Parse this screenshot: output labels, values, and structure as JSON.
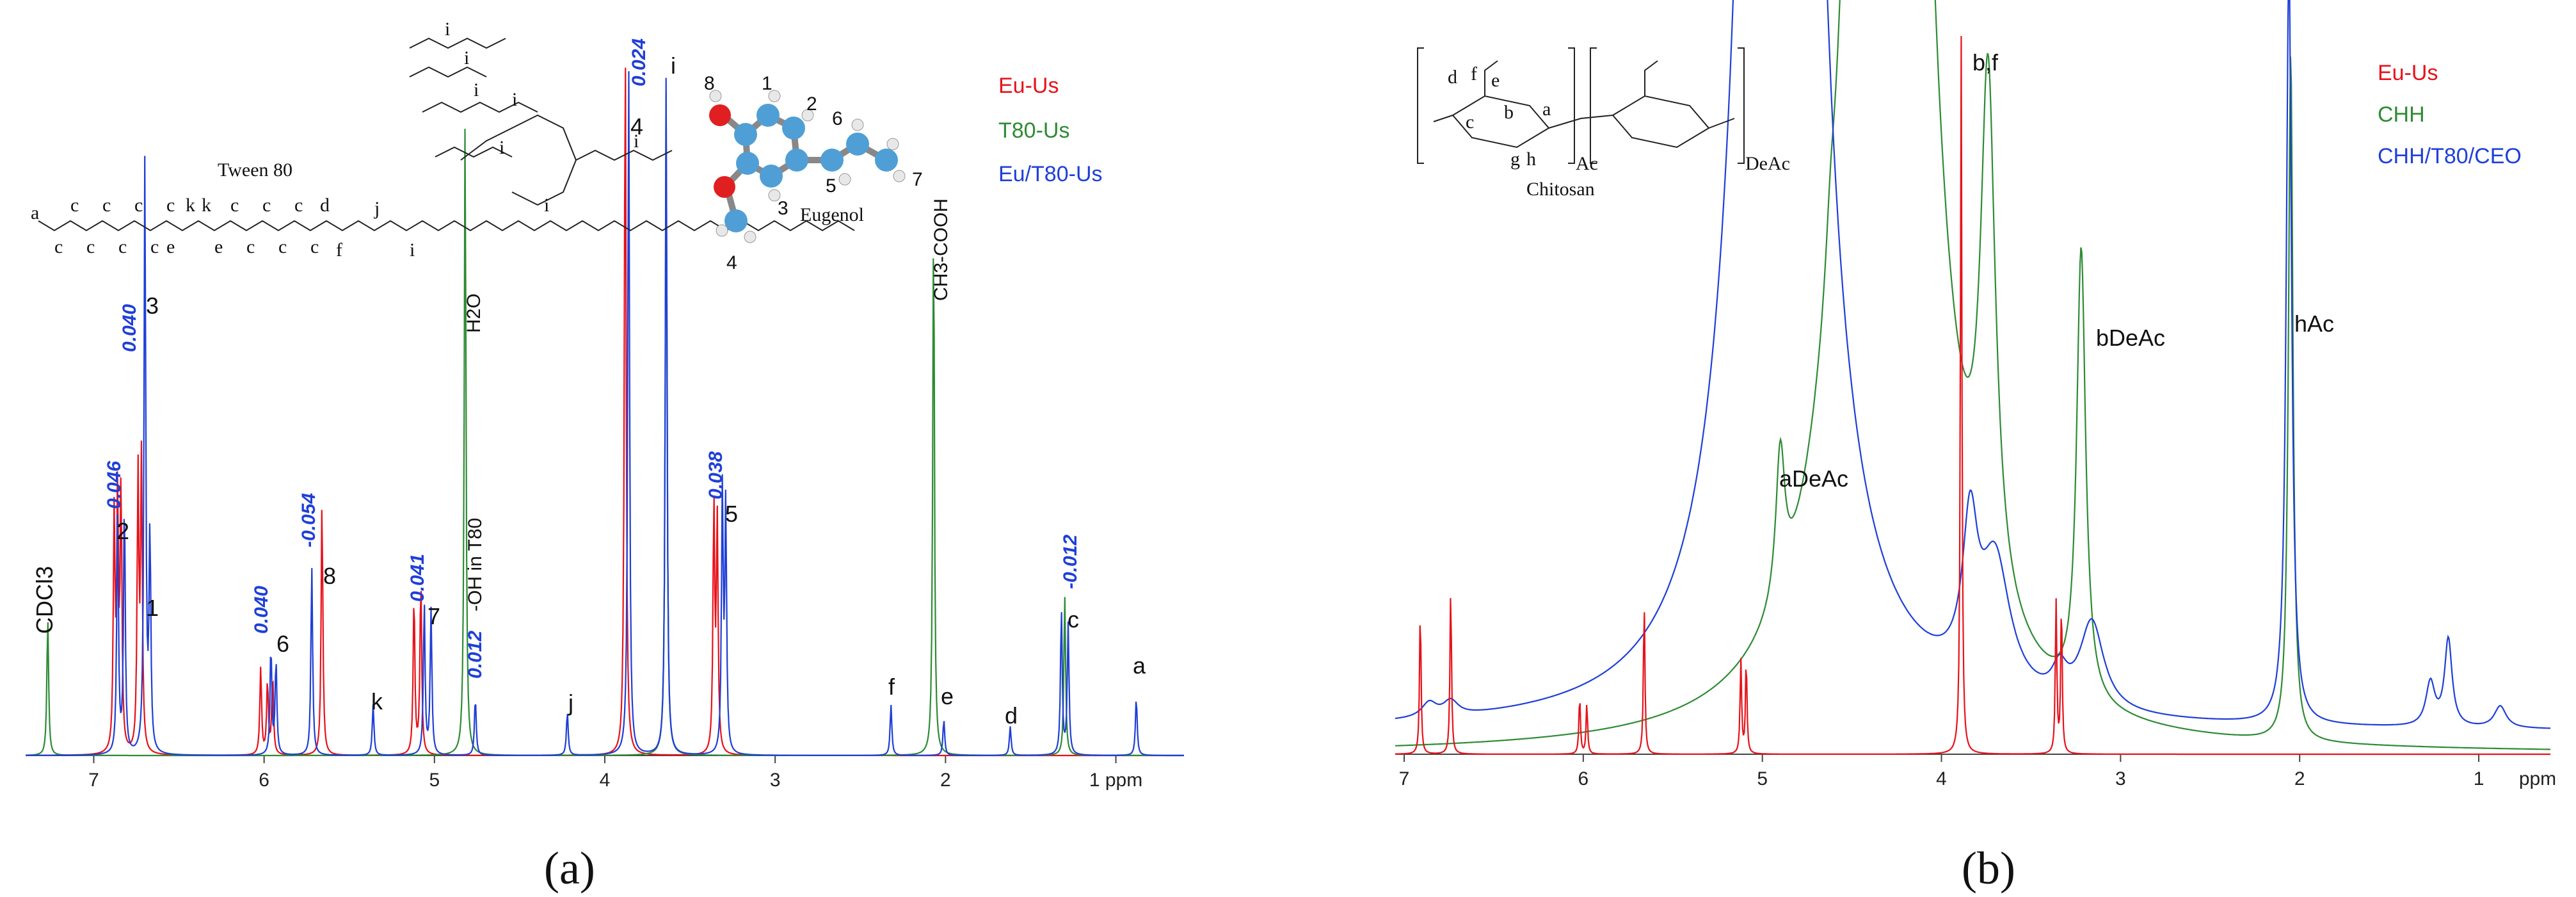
{
  "chart_data": [
    {
      "type": "line",
      "panel_label": "(a)",
      "x_tick_labels": [
        "7",
        "6",
        "5",
        "4",
        "3",
        "2",
        "1 ppm"
      ],
      "x_ticks": [
        7,
        6,
        5,
        4,
        3,
        2,
        1
      ],
      "xlim": [
        7.4,
        0.6
      ],
      "legend": [
        {
          "name": "Eu-Us",
          "color": "#e8121a"
        },
        {
          "name": "T80-Us",
          "color": "#2e8b34"
        },
        {
          "name": "Eu/T80-Us",
          "color": "#1f3fd8"
        }
      ],
      "series": [
        {
          "name": "Eu-Us",
          "color": "#e8121a",
          "peaks": [
            {
              "x": 6.88,
              "h": 0.32
            },
            {
              "x": 6.86,
              "h": 0.34
            },
            {
              "x": 6.84,
              "h": 0.36
            },
            {
              "x": 6.74,
              "h": 0.38
            },
            {
              "x": 6.72,
              "h": 0.4
            },
            {
              "x": 6.02,
              "h": 0.12
            },
            {
              "x": 5.98,
              "h": 0.1
            },
            {
              "x": 5.95,
              "h": 0.11
            },
            {
              "x": 5.66,
              "h": 0.35
            },
            {
              "x": 5.12,
              "h": 0.22
            },
            {
              "x": 5.08,
              "h": 0.24
            },
            {
              "x": 3.88,
              "h": 1.0
            },
            {
              "x": 3.36,
              "h": 0.34
            },
            {
              "x": 3.34,
              "h": 0.32
            }
          ]
        },
        {
          "name": "T80-Us",
          "color": "#2e8b34",
          "peaks": [
            {
              "x": 7.27,
              "h": 0.19
            },
            {
              "x": 4.82,
              "h": 0.88
            },
            {
              "x": 3.64,
              "h": 0.92
            },
            {
              "x": 2.07,
              "h": 0.74
            },
            {
              "x": 1.3,
              "h": 0.22
            }
          ]
        },
        {
          "name": "Eu/T80-Us",
          "color": "#1f3fd8",
          "peaks": [
            {
              "x": 6.86,
              "h": 0.33
            },
            {
              "x": 6.82,
              "h": 0.35
            },
            {
              "x": 6.7,
              "h": 0.82
            },
            {
              "x": 6.67,
              "h": 0.3
            },
            {
              "x": 5.96,
              "h": 0.15
            },
            {
              "x": 5.93,
              "h": 0.13
            },
            {
              "x": 5.72,
              "h": 0.26
            },
            {
              "x": 5.36,
              "h": 0.07
            },
            {
              "x": 5.06,
              "h": 0.21
            },
            {
              "x": 5.02,
              "h": 0.2
            },
            {
              "x": 4.76,
              "h": 0.08
            },
            {
              "x": 4.22,
              "h": 0.06
            },
            {
              "x": 3.86,
              "h": 0.96
            },
            {
              "x": 3.64,
              "h": 0.94
            },
            {
              "x": 3.31,
              "h": 0.36
            },
            {
              "x": 3.29,
              "h": 0.34
            },
            {
              "x": 2.32,
              "h": 0.07
            },
            {
              "x": 2.01,
              "h": 0.05
            },
            {
              "x": 1.62,
              "h": 0.04
            },
            {
              "x": 1.32,
              "h": 0.2
            },
            {
              "x": 1.28,
              "h": 0.18
            },
            {
              "x": 0.88,
              "h": 0.08
            }
          ]
        }
      ],
      "peak_labels": [
        "CDCl3",
        "2",
        "1",
        "3",
        "6",
        "8",
        "k",
        "7",
        "-OH in T80",
        "H2O",
        "j",
        "4",
        "i",
        "5",
        "f",
        "e",
        "d",
        "c",
        "a"
      ],
      "annotations": [
        "0.046",
        "0.040",
        "0.040",
        "-0.054",
        "0.041",
        "0.012",
        "0.024",
        "0.038",
        "-0.012",
        "CH3-COOH"
      ],
      "structures": [
        "Tween 80",
        "Eugenol"
      ],
      "tween80_labels": [
        "a",
        "c",
        "c",
        "c",
        "c",
        "k",
        "k",
        "c",
        "c",
        "c",
        "d",
        "j",
        "i",
        "i",
        "i",
        "i",
        "i",
        "i",
        "i",
        "c",
        "c",
        "c",
        "c",
        "e",
        "e",
        "c",
        "c",
        "c",
        "f",
        "i"
      ],
      "eugenol_labels": [
        "8",
        "1",
        "2",
        "6",
        "7",
        "3",
        "5",
        "4"
      ]
    },
    {
      "type": "line",
      "panel_label": "(b)",
      "x_tick_labels": [
        "7",
        "6",
        "5",
        "4",
        "3",
        "2",
        "1",
        "ppm"
      ],
      "x_ticks": [
        7,
        6,
        5,
        4,
        3,
        2,
        1
      ],
      "xlim": [
        7.05,
        0.6
      ],
      "legend": [
        {
          "name": "Eu-Us",
          "color": "#e8121a"
        },
        {
          "name": "CHH",
          "color": "#2e8b34"
        },
        {
          "name": "CHH/T80/CEO",
          "color": "#1f3fd8"
        }
      ],
      "series": [
        {
          "name": "Eu-Us",
          "color": "#e8121a",
          "peaks": [
            {
              "x": 6.91,
              "h": 0.2
            },
            {
              "x": 6.74,
              "h": 0.23
            },
            {
              "x": 6.02,
              "h": 0.08
            },
            {
              "x": 5.98,
              "h": 0.07
            },
            {
              "x": 5.66,
              "h": 0.21
            },
            {
              "x": 5.12,
              "h": 0.13
            },
            {
              "x": 5.09,
              "h": 0.13
            },
            {
              "x": 3.89,
              "h": 1.0
            },
            {
              "x": 3.36,
              "h": 0.21
            },
            {
              "x": 3.33,
              "h": 0.21
            }
          ]
        },
        {
          "name": "CHH",
          "color": "#2e8b34"
        },
        {
          "name": "CHH/T80/CEO",
          "color": "#1f3fd8"
        }
      ],
      "peak_labels": [
        "b,f",
        "aDeAc",
        "bDeAc",
        "hAc"
      ],
      "structures": [
        "Chitosan"
      ],
      "chitosan_labels": [
        "d",
        "f",
        "e",
        "c",
        "b",
        "a",
        "g",
        "h",
        "Ac",
        "DeAc"
      ]
    }
  ]
}
